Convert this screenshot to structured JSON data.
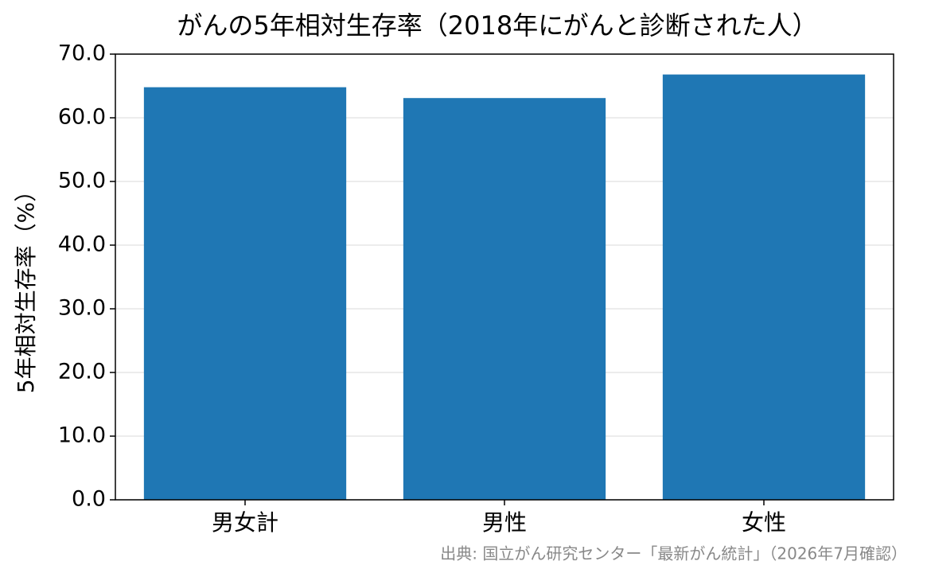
{
  "chart_data": {
    "type": "bar",
    "title": "がんの5年相対生存率（2018年にがんと診断された人）",
    "ylabel": "5年相対生存率（%）",
    "source": "出典: 国立がん研究センター「最新がん統計」（2026年7月確認）",
    "categories": [
      "男女計",
      "男性",
      "女性"
    ],
    "values": [
      64.8,
      63.1,
      66.8
    ],
    "color": "#1f77b4",
    "ylim": [
      0,
      70
    ],
    "yticks": [
      {
        "value": 0,
        "label": "0.0"
      },
      {
        "value": 10,
        "label": "10.0"
      },
      {
        "value": 20,
        "label": "20.0"
      },
      {
        "value": 30,
        "label": "30.0"
      },
      {
        "value": 40,
        "label": "40.0"
      },
      {
        "value": 50,
        "label": "50.0"
      },
      {
        "value": 60,
        "label": "60.0"
      },
      {
        "value": 70,
        "label": "70.0"
      }
    ],
    "grid": true
  }
}
